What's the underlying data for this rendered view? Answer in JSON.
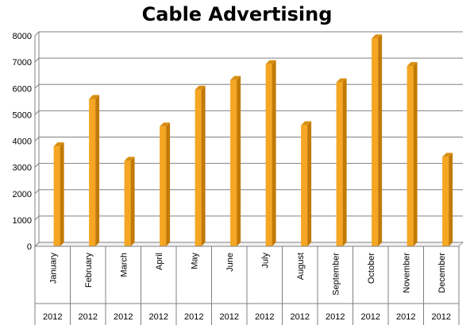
{
  "chart_data": {
    "type": "bar",
    "title": "Cable Advertising",
    "categories": [
      "January",
      "February",
      "March",
      "April",
      "May",
      "June",
      "July",
      "August",
      "September",
      "October",
      "November",
      "December"
    ],
    "years": [
      "2012",
      "2012",
      "2012",
      "2012",
      "2012",
      "2012",
      "2012",
      "2012",
      "2012",
      "2012",
      "2012",
      "2012"
    ],
    "values": [
      3800,
      5600,
      3250,
      4550,
      5950,
      6320,
      6920,
      4600,
      6230,
      7900,
      6850,
      3400
    ],
    "ylim": [
      0,
      8000
    ],
    "yticks": [
      0,
      1000,
      2000,
      3000,
      4000,
      5000,
      6000,
      7000,
      8000
    ],
    "grid": true,
    "legend": "none",
    "colors": {
      "bar_front": "#f5a623",
      "bar_side": "#c27a06",
      "bar_top": "#d98f12",
      "grid": "#808080"
    }
  }
}
